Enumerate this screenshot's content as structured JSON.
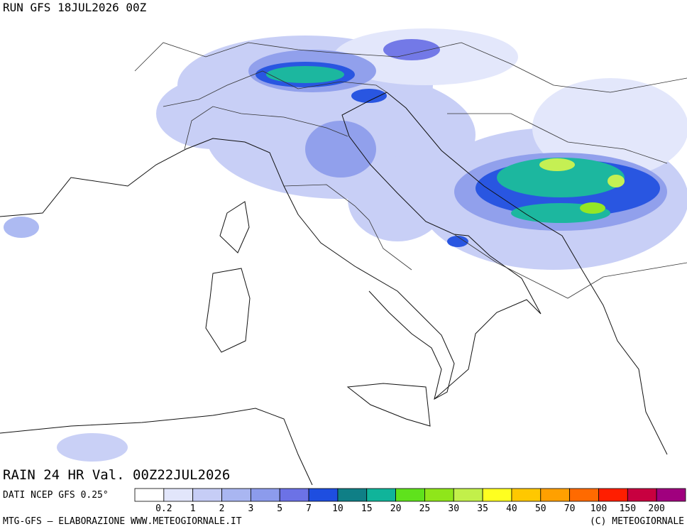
{
  "header": {
    "run": "RUN GFS 18JUL2026 00Z"
  },
  "map": {
    "title": "RAIN 24 HR Val. 00Z22JUL2026",
    "source": "DATI NCEP GFS 0.25°"
  },
  "legend": {
    "labels": [
      "0.2",
      "1",
      "2",
      "3",
      "5",
      "7",
      "10",
      "15",
      "20",
      "25",
      "30",
      "35",
      "40",
      "50",
      "70",
      "100",
      "150",
      "200"
    ],
    "colors": [
      "#ffffff",
      "#e2e6fb",
      "#c6cdf6",
      "#a9b6f1",
      "#8c9bec",
      "#6c72e6",
      "#1e4ee0",
      "#0f7f86",
      "#10b49a",
      "#5fe21c",
      "#8fe61a",
      "#c2f04a",
      "#ffff20",
      "#ffc800",
      "#ffa000",
      "#ff6a00",
      "#ff1e00",
      "#c80040",
      "#a0007e"
    ]
  },
  "footer": {
    "left": "MTG-GFS – ELABORAZIONE WWW.METEOGIORNALE.IT",
    "right": "(C) METEOGIORNALE"
  }
}
